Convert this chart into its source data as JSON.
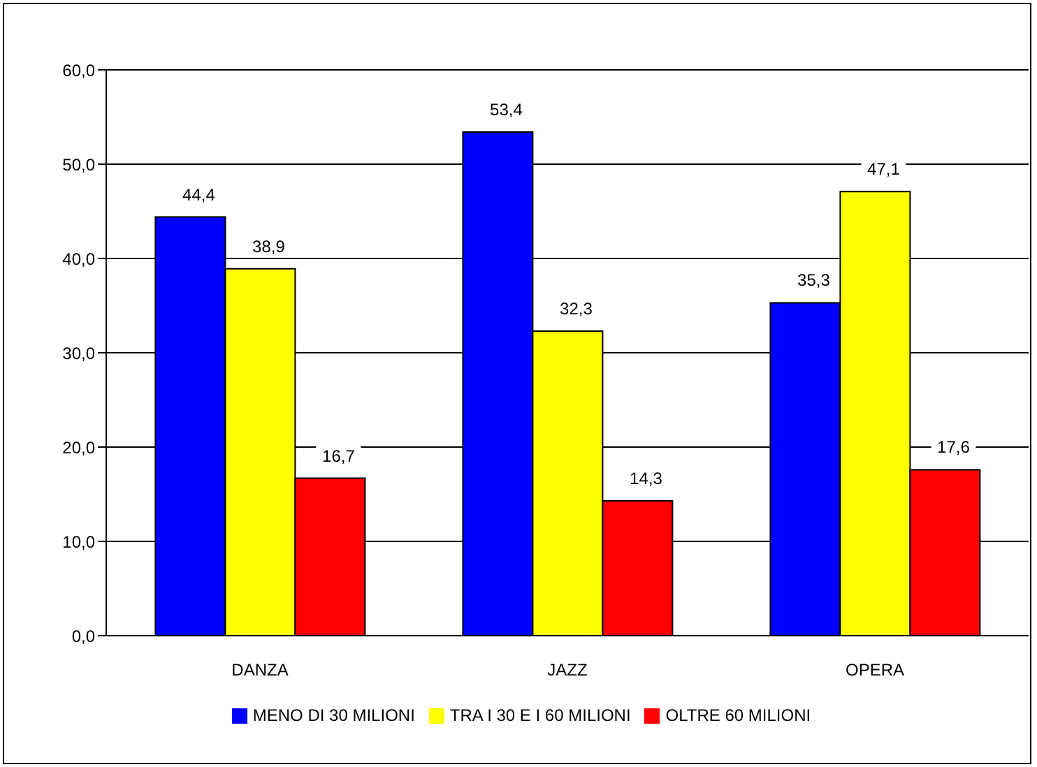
{
  "chart_data": {
    "type": "bar",
    "categories": [
      "DANZA",
      "JAZZ",
      "OPERA"
    ],
    "series": [
      {
        "name": "MENO DI 30 MILIONI",
        "color": "#0000ff",
        "values": [
          44.4,
          53.4,
          35.3
        ],
        "value_labels": [
          "44,4",
          "53,4",
          "35,3"
        ]
      },
      {
        "name": "TRA I 30 E I 60 MILIONI",
        "color": "#ffff00",
        "values": [
          38.9,
          32.3,
          47.1
        ],
        "value_labels": [
          "38,9",
          "32,3",
          "47,1"
        ]
      },
      {
        "name": "OLTRE 60 MILIONI",
        "color": "#ff0000",
        "values": [
          16.7,
          14.3,
          17.6
        ],
        "value_labels": [
          "16,7",
          "14,3",
          "17,6"
        ]
      }
    ],
    "ylim": [
      0,
      60
    ],
    "yticks": [
      {
        "value": 0,
        "label": "0,0"
      },
      {
        "value": 10,
        "label": "10,0"
      },
      {
        "value": 20,
        "label": "20,0"
      },
      {
        "value": 30,
        "label": "30,0"
      },
      {
        "value": 40,
        "label": "40,0"
      },
      {
        "value": 50,
        "label": "50,0"
      },
      {
        "value": 60,
        "label": "60,0"
      }
    ],
    "grid": "y",
    "legend": "bottom"
  }
}
